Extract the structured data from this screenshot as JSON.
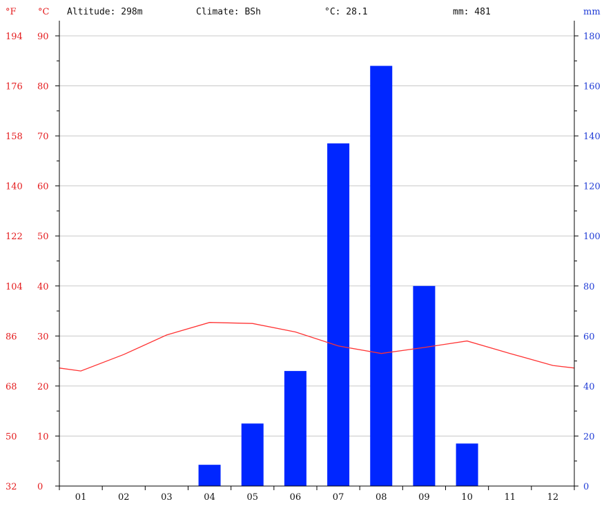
{
  "header": {
    "unit_f": "°F",
    "unit_c": "°C",
    "unit_mm": "mm",
    "altitude": "Altitude: 298m",
    "climate": "Climate: BSh",
    "temp_mean": "°C: 28.1",
    "precip_total": "mm: 481"
  },
  "colors": {
    "temperature": "#ff3333",
    "precipitation": "#0026ff",
    "axis_left_labels": "#e41a1c",
    "axis_right_labels": "#1f3bd6",
    "grid": "#c8c8c8"
  },
  "chart_data": {
    "type": "bar",
    "categories": [
      "01",
      "02",
      "03",
      "04",
      "05",
      "06",
      "07",
      "08",
      "09",
      "10",
      "11",
      "12"
    ],
    "series": [
      {
        "type": "bar",
        "axis": "right",
        "values": [
          0,
          0,
          0,
          8.5,
          25,
          46,
          137,
          168,
          80,
          17,
          0,
          0
        ]
      },
      {
        "type": "line",
        "axis": "left",
        "values": [
          23,
          26.3,
          30.2,
          32.7,
          32.5,
          30.8,
          28,
          26.5,
          27.7,
          29,
          26.5,
          24.1
        ],
        "edge_left": 23.6,
        "edge_right": 23.6
      }
    ],
    "y_left": {
      "ylim": [
        0,
        90
      ],
      "ticks": [
        0,
        10,
        20,
        30,
        40,
        50,
        60,
        70,
        80,
        90
      ]
    },
    "y_left_f": {
      "ticks": [
        32,
        50,
        68,
        86,
        104,
        122,
        140,
        158,
        176,
        194
      ]
    },
    "y_right": {
      "ylim": [
        0,
        180
      ],
      "ticks": [
        0,
        20,
        40,
        60,
        80,
        100,
        120,
        140,
        160,
        180
      ]
    },
    "grid": true
  }
}
